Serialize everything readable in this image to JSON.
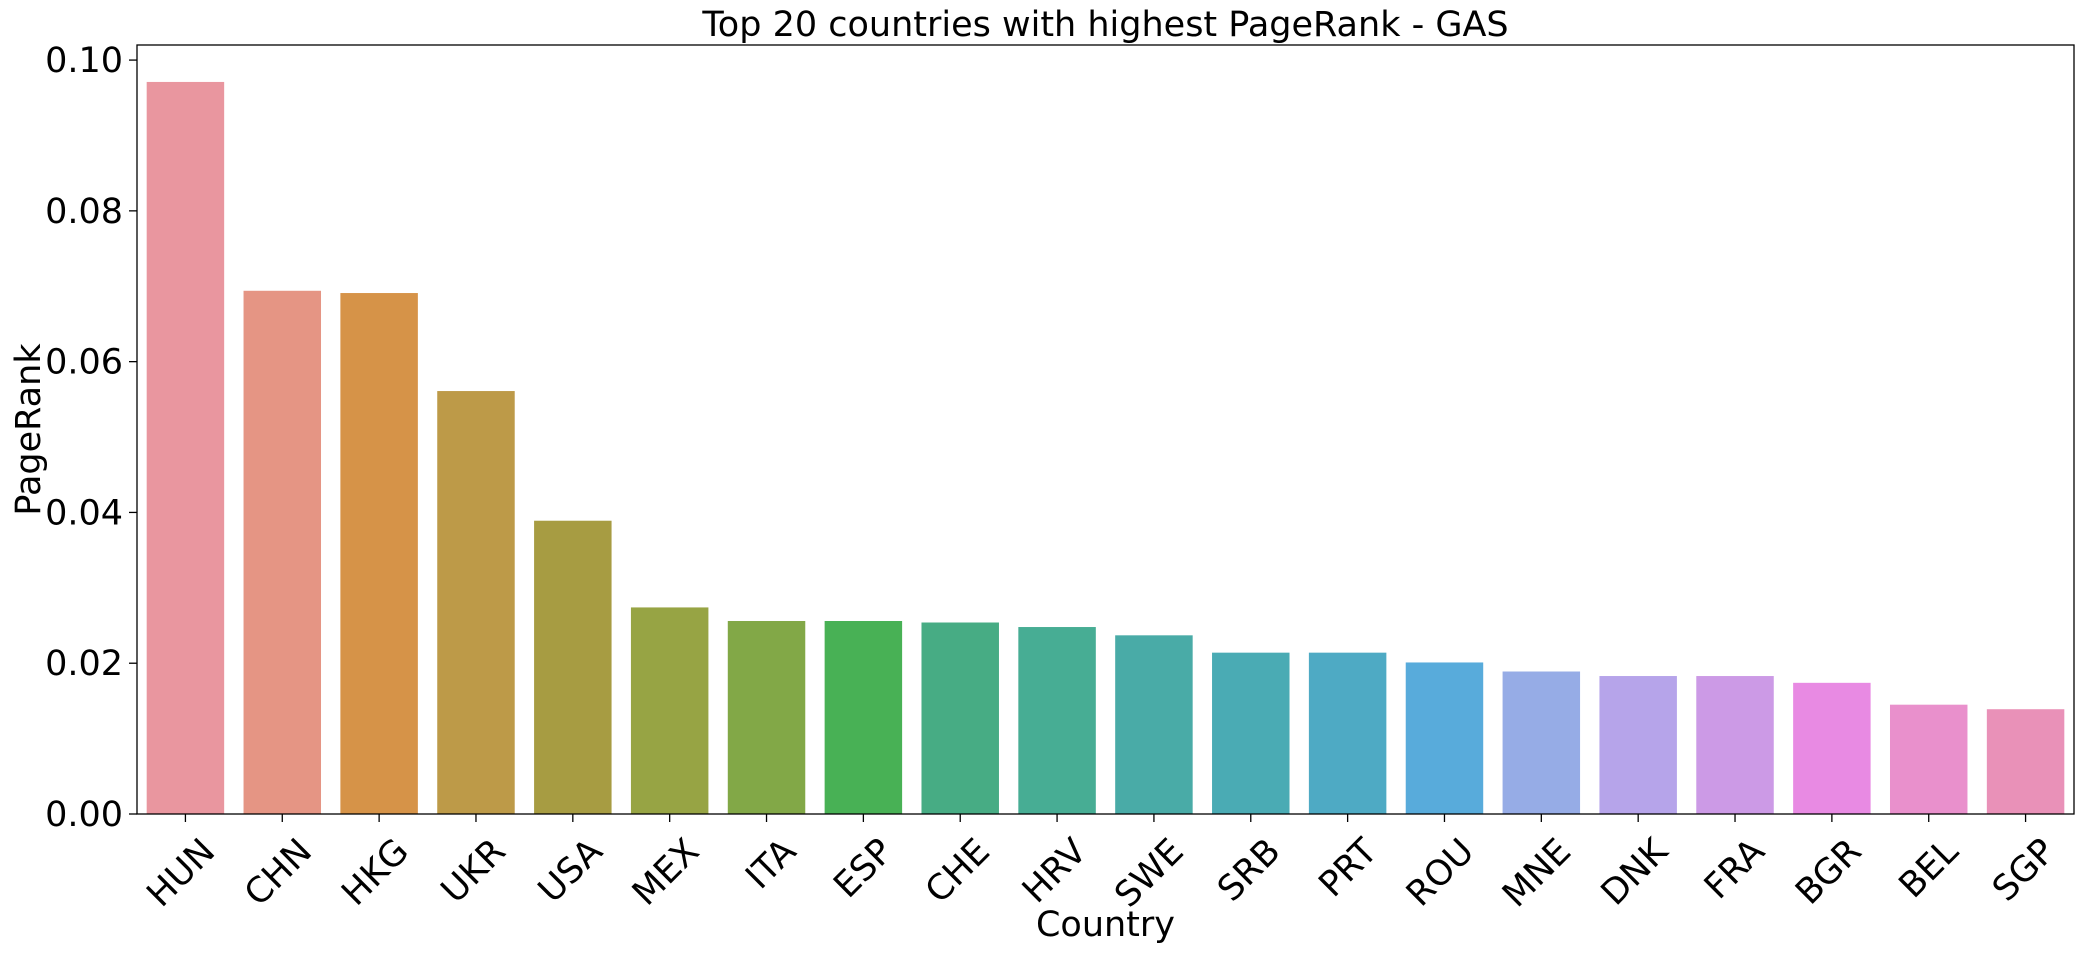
{
  "chart_data": {
    "type": "bar",
    "title": "Top 20 countries with highest PageRank - GAS",
    "xlabel": "Country",
    "ylabel": "PageRank",
    "ylim": [
      0,
      0.102
    ],
    "yticks": [
      "0.00",
      "0.02",
      "0.04",
      "0.06",
      "0.08",
      "0.10"
    ],
    "grid": false,
    "categories": [
      "HUN",
      "CHN",
      "HKG",
      "UKR",
      "USA",
      "MEX",
      "ITA",
      "ESP",
      "CHE",
      "HRV",
      "SWE",
      "SRB",
      "PRT",
      "ROU",
      "MNE",
      "DNK",
      "FRA",
      "BGR",
      "BEL",
      "SGP"
    ],
    "values": [
      0.0971,
      0.0694,
      0.0691,
      0.0561,
      0.0389,
      0.0274,
      0.0256,
      0.0256,
      0.0254,
      0.0248,
      0.0237,
      0.0214,
      0.0214,
      0.0201,
      0.0189,
      0.0183,
      0.0183,
      0.0174,
      0.0145,
      0.0139
    ],
    "colors": [
      "#e9969f",
      "#e59584",
      "#d69348",
      "#bd9a48",
      "#a79c42",
      "#97a444",
      "#82a847",
      "#48b155",
      "#47ac84",
      "#47ad94",
      "#49aba7",
      "#4aabb4",
      "#4eaac4",
      "#58abdb",
      "#96ace6",
      "#b6a4ea",
      "#cc9ae6",
      "#e88ae3",
      "#e990cc",
      "#e991b8"
    ]
  }
}
